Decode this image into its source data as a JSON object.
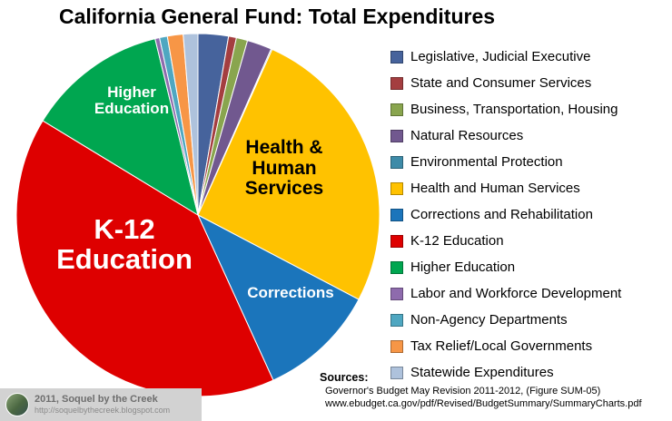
{
  "title": "California General Fund: Total Expenditures",
  "chart_data": {
    "type": "pie",
    "title": "California General Fund: Total Expenditures",
    "units": "percent of total (estimated from slice angles)",
    "start_angle_deg": 0,
    "direction": "clockwise",
    "legend_position": "right",
    "grid": false,
    "slices": [
      {
        "label": "Legislative, Judicial Executive",
        "value": 2.7,
        "color": "#46639C"
      },
      {
        "label": "State and Consumer Services",
        "value": 0.7,
        "color": "#A43E40"
      },
      {
        "label": "Business, Transportation, Housing",
        "value": 1.0,
        "color": "#89A54E"
      },
      {
        "label": "Natural Resources",
        "value": 2.2,
        "color": "#71588F"
      },
      {
        "label": "Environmental Protection",
        "value": 0.1,
        "color": "#3E8BA8"
      },
      {
        "label": "Health and Human Services",
        "value": 26.0,
        "color": "#FFC200"
      },
      {
        "label": "Corrections and Rehabilitation",
        "value": 10.5,
        "color": "#1B75BB"
      },
      {
        "label": "K-12 Education",
        "value": 40.5,
        "color": "#DE0000"
      },
      {
        "label": "Higher Education",
        "value": 12.5,
        "color": "#00A650"
      },
      {
        "label": "Labor and Workforce Development",
        "value": 0.4,
        "color": "#8E6BAD"
      },
      {
        "label": "Non-Agency Departments",
        "value": 0.7,
        "color": "#4FA7C1"
      },
      {
        "label": "Tax Relief/Local Governments",
        "value": 1.4,
        "color": "#F79646"
      },
      {
        "label": "Statewide Expenditures",
        "value": 1.3,
        "color": "#AEC2DC"
      }
    ],
    "annotations": [
      "Higher Education",
      "Health & Human Services",
      "K-12 Education",
      "Corrections"
    ]
  },
  "pie_labels": {
    "higher_education": "Higher\nEducation",
    "health_human_services": "Health &\nHuman\nServices",
    "k12_education": "K-12\nEducation",
    "corrections": "Corrections"
  },
  "watermark": {
    "line1": "2011, Soquel by the Creek",
    "line2": "http://soquelbythecreek.blogspot.com"
  },
  "sources": {
    "heading": "Sources:",
    "line1": "Governor's Budget May Revision 2011-2012, (Figure SUM-05)",
    "line2": "www.ebudget.ca.gov/pdf/Revised/BudgetSummary/SummaryCharts.pdf"
  }
}
